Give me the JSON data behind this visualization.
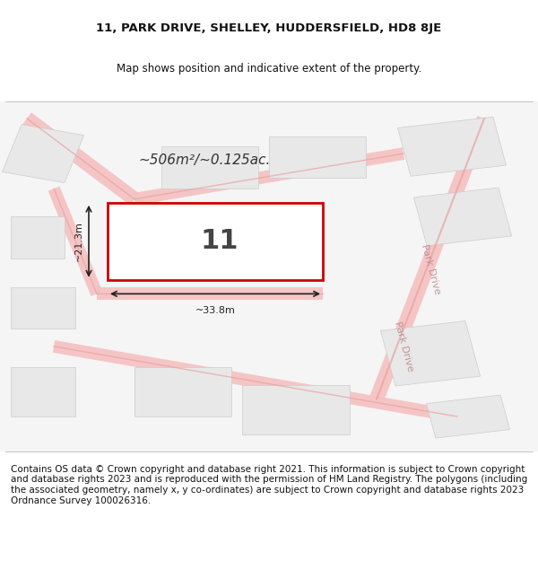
{
  "title_line1": "11, PARK DRIVE, SHELLEY, HUDDERSFIELD, HD8 8JE",
  "title_line2": "Map shows position and indicative extent of the property.",
  "footer_text": "Contains OS data © Crown copyright and database right 2021. This information is subject to Crown copyright and database rights 2023 and is reproduced with the permission of HM Land Registry. The polygons (including the associated geometry, namely x, y co-ordinates) are subject to Crown copyright and database rights 2023 Ordnance Survey 100026316.",
  "property_label": "11",
  "area_label": "~506m²/~0.125ac.",
  "dim_width": "~33.8m",
  "dim_height": "~21.3m",
  "bg_color": "#f0f0f0",
  "map_bg": "#f5f5f5",
  "road_color": "#f5c0c0",
  "building_color": "#e8e8e8",
  "highlight_color": "#cc0000",
  "road_line_color": "#e8a0a0",
  "text_color": "#333333",
  "footer_fontsize": 7.5,
  "title_fontsize": 9.5,
  "subtitle_fontsize": 8.5
}
